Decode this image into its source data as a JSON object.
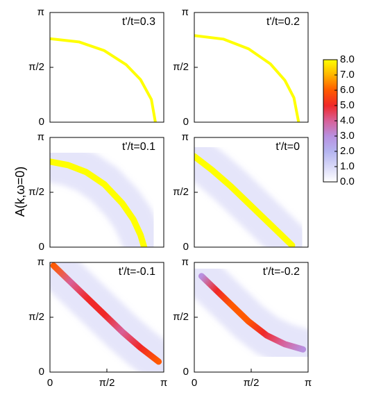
{
  "ylabel": "A(k,ω=0)",
  "colorbar": {
    "lim": [
      0,
      8
    ],
    "ticks": [
      {
        "value": 0,
        "label": "0.0"
      },
      {
        "value": 1,
        "label": "1.0"
      },
      {
        "value": 2,
        "label": "2.0"
      },
      {
        "value": 3,
        "label": "3.0"
      },
      {
        "value": 4,
        "label": "4.0"
      },
      {
        "value": 5,
        "label": "5.0"
      },
      {
        "value": 6,
        "label": "6.0"
      },
      {
        "value": 7,
        "label": "7.0"
      },
      {
        "value": 8,
        "label": "8.0"
      }
    ],
    "colors": [
      "#ffffff",
      "#d8d8f8",
      "#b4b4f0",
      "#b890e0",
      "#d86098",
      "#f02828",
      "#ff5a00",
      "#ffb400",
      "#ffff00"
    ]
  },
  "chart_data": [
    {
      "type": "heatmap",
      "title": "t'/t=0.3",
      "xlim": [
        0,
        3.1416
      ],
      "ylim": [
        0,
        3.1416
      ],
      "yticks": [
        0,
        {
          "value": 1.5708,
          "label": "π/2"
        },
        {
          "value": 3.1416,
          "label": "π"
        }
      ],
      "series": [
        {
          "x": [
            0,
            0.8,
            1.5,
            2.1,
            2.5,
            2.8,
            2.91
          ],
          "y": [
            2.39,
            2.3,
            2.05,
            1.65,
            1.22,
            0.65,
            0
          ],
          "values": [
            8,
            8,
            8,
            8,
            8,
            8,
            8
          ]
        }
      ]
    },
    {
      "type": "heatmap",
      "title": "t'/t=0.2",
      "xlim": [
        0,
        3.1416
      ],
      "ylim": [
        0,
        3.1416
      ],
      "yticks": [
        0,
        {
          "value": 1.5708,
          "label": "π/2"
        },
        {
          "value": 3.1416,
          "label": "π"
        }
      ],
      "series": [
        {
          "x": [
            0,
            0.8,
            1.5,
            2.1,
            2.5,
            2.75,
            2.88
          ],
          "y": [
            2.48,
            2.38,
            2.1,
            1.67,
            1.2,
            0.7,
            0
          ],
          "values": [
            8,
            8,
            8,
            8,
            8,
            8,
            8
          ]
        }
      ]
    },
    {
      "type": "heatmap",
      "title": "t'/t=0.1",
      "xlim": [
        0,
        3.1416
      ],
      "ylim": [
        0,
        3.1416
      ],
      "yticks": [
        0,
        {
          "value": 1.5708,
          "label": "π/2"
        },
        {
          "value": 3.1416,
          "label": "π"
        }
      ],
      "series": [
        {
          "x": [
            0,
            0.5,
            1.0,
            1.5,
            2.0,
            2.3,
            2.5,
            2.6
          ],
          "y": [
            2.45,
            2.35,
            2.15,
            1.8,
            1.25,
            0.8,
            0.35,
            0
          ],
          "values": [
            8,
            8,
            8,
            8,
            8,
            8,
            8,
            8
          ]
        }
      ]
    },
    {
      "type": "heatmap",
      "title": "t'/t=0",
      "xlim": [
        0,
        3.1416
      ],
      "ylim": [
        0,
        3.1416
      ],
      "yticks": [
        0,
        {
          "value": 1.5708,
          "label": "π/2"
        },
        {
          "value": 3.1416,
          "label": "π"
        }
      ],
      "series": [
        {
          "x": [
            0,
            0.5,
            1.0,
            1.5,
            2.0,
            2.4,
            2.7
          ],
          "y": [
            2.6,
            2.2,
            1.75,
            1.25,
            0.75,
            0.35,
            0.05
          ],
          "values": [
            8,
            8,
            8,
            8,
            8,
            8,
            8
          ]
        }
      ]
    },
    {
      "type": "heatmap",
      "title": "t'/t=-0.1",
      "xlim": [
        0,
        3.1416
      ],
      "ylim": [
        0,
        3.1416
      ],
      "xticks": [
        0,
        {
          "value": 1.5708,
          "label": "π/2"
        },
        {
          "value": 3.1416,
          "label": "π"
        }
      ],
      "yticks": [
        0,
        {
          "value": 1.5708,
          "label": "π/2"
        },
        {
          "value": 3.1416,
          "label": "π"
        }
      ],
      "series": [
        {
          "x": [
            0.1,
            0.5,
            1.0,
            1.5,
            2.0,
            2.5,
            3.0
          ],
          "y": [
            3.05,
            2.65,
            2.15,
            1.65,
            1.15,
            0.7,
            0.3
          ],
          "values": [
            6,
            4,
            5,
            5,
            4,
            5,
            6
          ]
        }
      ]
    },
    {
      "type": "heatmap",
      "title": "t'/t=-0.2",
      "xlim": [
        0,
        3.1416
      ],
      "ylim": [
        0,
        3.1416
      ],
      "xticks": [
        0,
        {
          "value": 1.5708,
          "label": "π/2"
        },
        {
          "value": 3.1416,
          "label": "π"
        }
      ],
      "yticks": [
        0,
        {
          "value": 1.5708,
          "label": "π/2"
        },
        {
          "value": 3.1416,
          "label": "π"
        }
      ],
      "series": [
        {
          "x": [
            0.2,
            0.6,
            1.0,
            1.5,
            2.0,
            2.5,
            3.0
          ],
          "y": [
            2.75,
            2.35,
            1.95,
            1.45,
            1.05,
            0.8,
            0.65
          ],
          "values": [
            3,
            5,
            6,
            6,
            5,
            4,
            3
          ]
        }
      ]
    }
  ]
}
